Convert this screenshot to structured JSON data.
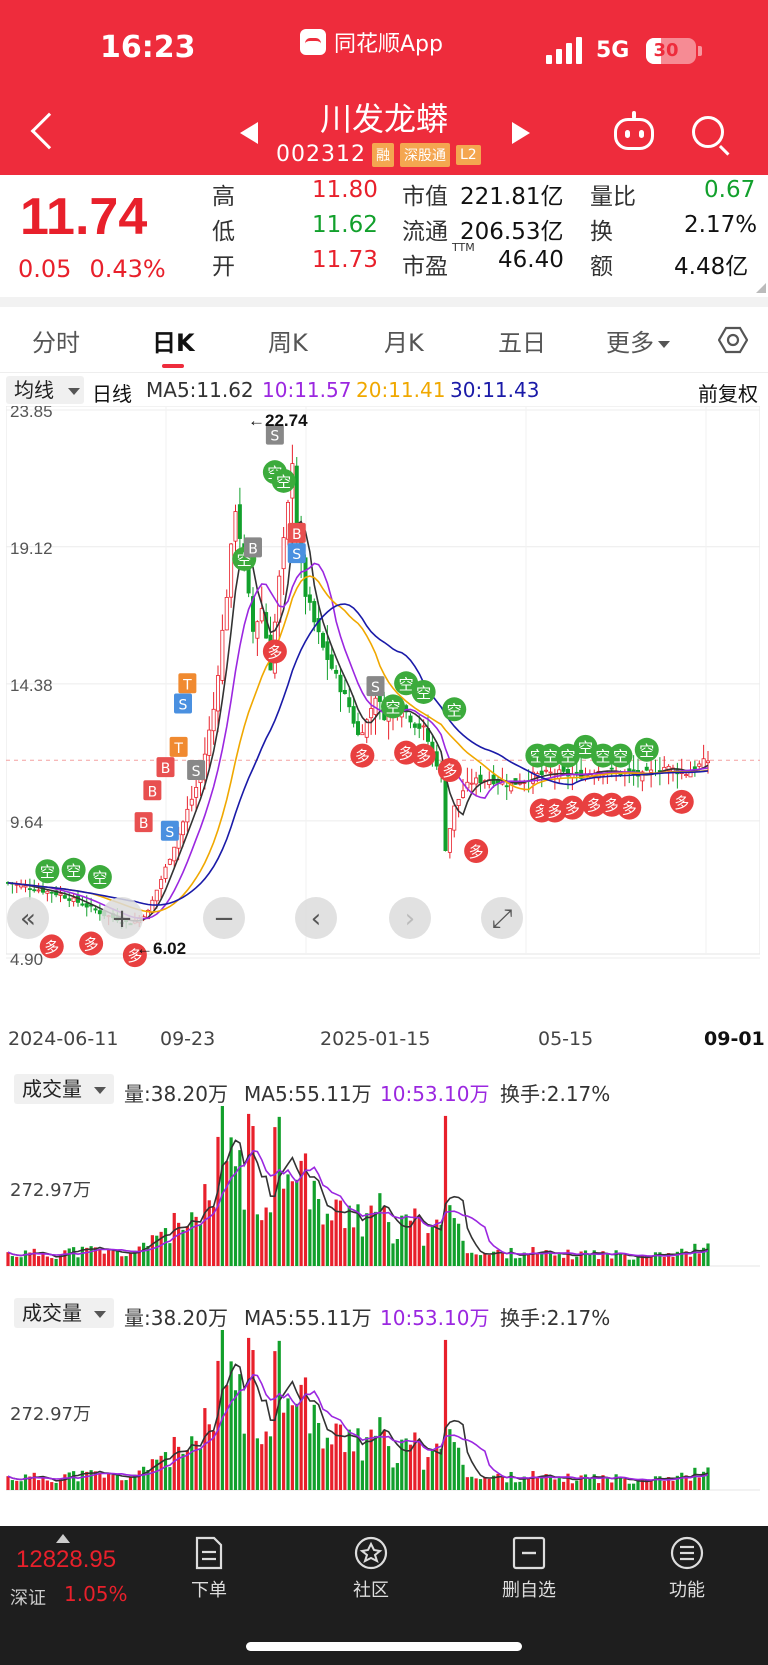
{
  "status": {
    "time": "16:23",
    "app_name": "同花顺App",
    "network": "5G",
    "battery": "30",
    "battery_level": 0.3
  },
  "header": {
    "name": "川发龙蟒",
    "code": "002312",
    "tags": [
      "融",
      "深股通",
      "L2"
    ]
  },
  "quote": {
    "price": "11.74",
    "change": "0.05",
    "change_pct": "0.43%",
    "high_label": "高",
    "high": "11.80",
    "low_label": "低",
    "low": "11.62",
    "open_label": "开",
    "open": "11.73",
    "mktcap_label": "市值",
    "mktcap": "221.81亿",
    "float_label": "流通",
    "float": "206.53亿",
    "pe_label": "市盈",
    "pe_sup": "TTM",
    "pe": "46.40",
    "vr_label": "量比",
    "vr": "0.67",
    "turnover_label": "换",
    "turnover": "2.17%",
    "amount_label": "额",
    "amount": "4.48亿"
  },
  "tabs": [
    "分时",
    "日K",
    "周K",
    "月K",
    "五日",
    "更多"
  ],
  "active_tab": "日K",
  "ma_row": {
    "selector": "均线",
    "period": "日线",
    "ma5": "MA5:11.62",
    "ma10": "10:11.57",
    "ma20": "20:11.41",
    "ma30": "30:11.43",
    "adjust": "前复权"
  },
  "colors": {
    "up": "#e8202b",
    "down": "#12a02c",
    "ma5": "#333333",
    "ma10": "#9b27e0",
    "ma20": "#f0a800",
    "ma30": "#1a1aa8",
    "header": "#ee2c3c"
  },
  "chart_data": {
    "type": "candlestick",
    "y_ticks": [
      "23.85",
      "19.12",
      "14.38",
      "9.64",
      "4.90"
    ],
    "ylim": [
      4.9,
      23.85
    ],
    "x_labels": [
      "2024-06-11",
      "09-23",
      "2025-01-15",
      "05-15",
      "09-01"
    ],
    "max_annotation": "←22.74",
    "min_annotation": "←6.02",
    "last_close": 11.74,
    "trend": [
      [
        0,
        7.5
      ],
      [
        12,
        7.1
      ],
      [
        18,
        6.7
      ],
      [
        22,
        6.4
      ],
      [
        28,
        6.1
      ],
      [
        32,
        6.5
      ],
      [
        36,
        8.0
      ],
      [
        40,
        9.6
      ],
      [
        44,
        11.2
      ],
      [
        47,
        13.5
      ],
      [
        50,
        17.5
      ],
      [
        52,
        20.5
      ],
      [
        54,
        18.5
      ],
      [
        56,
        16.2
      ],
      [
        58,
        17.0
      ],
      [
        60,
        15.0
      ],
      [
        62,
        18.0
      ],
      [
        64,
        20.5
      ],
      [
        65,
        22.2
      ],
      [
        66,
        19.5
      ],
      [
        68,
        17.5
      ],
      [
        70,
        16.5
      ],
      [
        72,
        15.6
      ],
      [
        75,
        14.6
      ],
      [
        78,
        13.6
      ],
      [
        80,
        12.6
      ],
      [
        82,
        13.1
      ],
      [
        84,
        14.0
      ],
      [
        86,
        13.3
      ],
      [
        88,
        13.4
      ],
      [
        90,
        13.6
      ],
      [
        93,
        13.0
      ],
      [
        95,
        12.8
      ],
      [
        97,
        12.0
      ],
      [
        99,
        11.3
      ],
      [
        100,
        8.7
      ],
      [
        102,
        10.1
      ],
      [
        104,
        10.7
      ],
      [
        106,
        11.0
      ],
      [
        110,
        11.1
      ],
      [
        115,
        10.9
      ],
      [
        120,
        11.2
      ],
      [
        125,
        11.3
      ],
      [
        130,
        11.2
      ],
      [
        135,
        11.4
      ],
      [
        140,
        11.3
      ],
      [
        145,
        11.2
      ],
      [
        150,
        11.5
      ],
      [
        155,
        11.3
      ],
      [
        160,
        11.74
      ]
    ],
    "markers": [
      {
        "text": "空",
        "color": "#3cab3c",
        "x": 9,
        "y": 7.9
      },
      {
        "text": "空",
        "color": "#3cab3c",
        "x": 15,
        "y": 7.95
      },
      {
        "text": "空",
        "color": "#3cab3c",
        "x": 21,
        "y": 7.7
      },
      {
        "text": "多",
        "color": "#e84040",
        "x": 10,
        "y": 5.3
      },
      {
        "text": "多",
        "color": "#e84040",
        "x": 19,
        "y": 5.4
      },
      {
        "text": "多",
        "color": "#e84040",
        "x": 29,
        "y": 5.0
      },
      {
        "text": "B",
        "color": "#e85050",
        "x": 31,
        "y": 9.6
      },
      {
        "text": "B",
        "color": "#e85050",
        "x": 33,
        "y": 10.7
      },
      {
        "text": "B",
        "color": "#e85050",
        "x": 36,
        "y": 11.5
      },
      {
        "text": "S",
        "color": "#4a90e0",
        "x": 37,
        "y": 9.3
      },
      {
        "text": "S",
        "color": "#4a90e0",
        "x": 40,
        "y": 13.7
      },
      {
        "text": "T",
        "color": "#f08a30",
        "x": 39,
        "y": 12.2
      },
      {
        "text": "T",
        "color": "#f08a30",
        "x": 41,
        "y": 14.4
      },
      {
        "text": "S",
        "color": "#888888",
        "x": 43,
        "y": 11.4
      },
      {
        "text": "空",
        "color": "#3cab3c",
        "x": 54,
        "y": 18.7
      },
      {
        "text": "B",
        "color": "#888888",
        "x": 56,
        "y": 19.1
      },
      {
        "text": "S",
        "color": "#888888",
        "x": 61,
        "y": 23.0
      },
      {
        "text": "空",
        "color": "#3cab3c",
        "x": 61,
        "y": 21.7
      },
      {
        "text": "空",
        "color": "#3cab3c",
        "x": 63,
        "y": 21.4
      },
      {
        "text": "B",
        "color": "#e85050",
        "x": 66,
        "y": 19.6
      },
      {
        "text": "S",
        "color": "#4a90e0",
        "x": 66,
        "y": 18.9
      },
      {
        "text": "多",
        "color": "#e84040",
        "x": 61,
        "y": 15.5
      },
      {
        "text": "S",
        "color": "#888888",
        "x": 84,
        "y": 14.3
      },
      {
        "text": "空",
        "color": "#3cab3c",
        "x": 88,
        "y": 13.6
      },
      {
        "text": "空",
        "color": "#3cab3c",
        "x": 91,
        "y": 14.4
      },
      {
        "text": "空",
        "color": "#3cab3c",
        "x": 95,
        "y": 14.1
      },
      {
        "text": "空",
        "color": "#3cab3c",
        "x": 102,
        "y": 13.5
      },
      {
        "text": "多",
        "color": "#e84040",
        "x": 81,
        "y": 11.9
      },
      {
        "text": "多",
        "color": "#e84040",
        "x": 91,
        "y": 12.0
      },
      {
        "text": "多",
        "color": "#e84040",
        "x": 95,
        "y": 11.9
      },
      {
        "text": "多",
        "color": "#e84040",
        "x": 101,
        "y": 11.4
      },
      {
        "text": "多",
        "color": "#e84040",
        "x": 107,
        "y": 8.6
      },
      {
        "text": "空",
        "color": "#3cab3c",
        "x": 121,
        "y": 11.9
      },
      {
        "text": "空",
        "color": "#3cab3c",
        "x": 124,
        "y": 11.9
      },
      {
        "text": "空",
        "color": "#3cab3c",
        "x": 128,
        "y": 11.9
      },
      {
        "text": "空",
        "color": "#3cab3c",
        "x": 132,
        "y": 12.2
      },
      {
        "text": "空",
        "color": "#3cab3c",
        "x": 136,
        "y": 11.9
      },
      {
        "text": "空",
        "color": "#3cab3c",
        "x": 140,
        "y": 11.9
      },
      {
        "text": "空",
        "color": "#3cab3c",
        "x": 146,
        "y": 12.1
      },
      {
        "text": "多",
        "color": "#e84040",
        "x": 122,
        "y": 10.0
      },
      {
        "text": "多",
        "color": "#e84040",
        "x": 125,
        "y": 10.0
      },
      {
        "text": "多",
        "color": "#e84040",
        "x": 129,
        "y": 10.1
      },
      {
        "text": "多",
        "color": "#e84040",
        "x": 134,
        "y": 10.2
      },
      {
        "text": "多",
        "color": "#e84040",
        "x": 138,
        "y": 10.2
      },
      {
        "text": "多",
        "color": "#e84040",
        "x": 142,
        "y": 10.1
      },
      {
        "text": "多",
        "color": "#e84040",
        "x": 154,
        "y": 10.3
      }
    ],
    "controls": [
      "«",
      "+",
      "−",
      "‹",
      "›",
      "⤢"
    ]
  },
  "volume_panels": [
    {
      "selector": "成交量",
      "vol": "量:38.20万",
      "ma5": "MA5:55.11万",
      "ma10": "10:53.10万",
      "turnover": "换手:2.17%",
      "tick": "272.97万"
    },
    {
      "selector": "成交量",
      "vol": "量:38.20万",
      "ma5": "MA5:55.11万",
      "ma10": "10:53.10万",
      "turnover": "换手:2.17%",
      "tick": "272.97万"
    }
  ],
  "bottom_bar": {
    "index_value": "12828.95",
    "index_name": "深证",
    "index_pct": "1.05%",
    "nav": [
      "下单",
      "社区",
      "删自选",
      "功能"
    ]
  }
}
